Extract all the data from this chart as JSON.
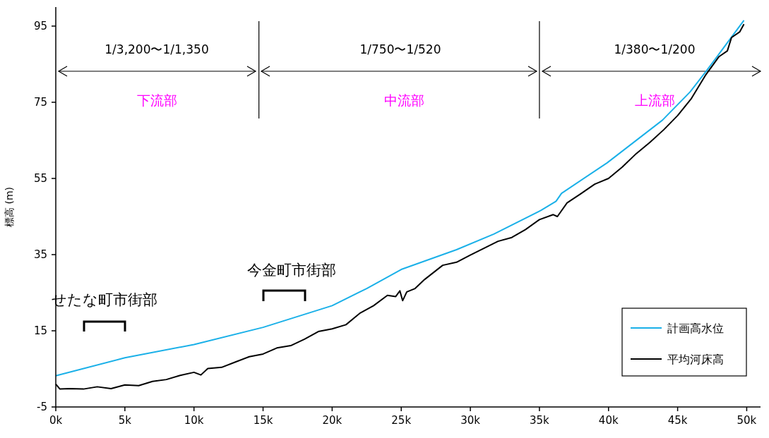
{
  "chart_data": {
    "type": "line",
    "ylabel": "標高 (m)",
    "xlim": [
      0,
      51
    ],
    "xticks": [
      {
        "value": 0,
        "label": "0k"
      },
      {
        "value": 5,
        "label": "5k"
      },
      {
        "value": 10,
        "label": "10k"
      },
      {
        "value": 15,
        "label": "15k"
      },
      {
        "value": 20,
        "label": "20k"
      },
      {
        "value": 25,
        "label": "25k"
      },
      {
        "value": 30,
        "label": "30k"
      },
      {
        "value": 35,
        "label": "35k"
      },
      {
        "value": 40,
        "label": "40k"
      },
      {
        "value": 45,
        "label": "45k"
      },
      {
        "value": 50,
        "label": "50k"
      }
    ],
    "ylim": [
      -5,
      100
    ],
    "yticks": [
      -5,
      15,
      35,
      55,
      75,
      95
    ],
    "grid": false,
    "legend": "bottom right",
    "series": [
      {
        "name": "計画高水位",
        "color": "#1ab0e8",
        "x": [
          0,
          5,
          10,
          15,
          20,
          22.5,
          25,
          29,
          31.7,
          35.1,
          36.2,
          36.6,
          39.9,
          43.9,
          45.9,
          47.1,
          49.8
        ],
        "values": [
          3.2,
          7.9,
          11.4,
          15.9,
          21.6,
          26.1,
          31.1,
          36.3,
          40.4,
          46.6,
          49,
          51.1,
          59.1,
          70.3,
          77.7,
          83.3,
          96.5
        ]
      },
      {
        "name": "平均河床高",
        "color": "#000000",
        "x": [
          0,
          0.3,
          1,
          2,
          3,
          4,
          5,
          6,
          7,
          8,
          9,
          10,
          10.5,
          11,
          12,
          13,
          14,
          15,
          16,
          17,
          18,
          19,
          20,
          21,
          22,
          23,
          24,
          24.6,
          24.9,
          25.1,
          25.4,
          26,
          26.7,
          28,
          29,
          30,
          31,
          32,
          33,
          34,
          35,
          36,
          36.3,
          37,
          38,
          39,
          40,
          41,
          42,
          43,
          44,
          45,
          46,
          47,
          48,
          48.6,
          48.9,
          49.5,
          49.8
        ],
        "values": [
          1,
          -0.3,
          -0.2,
          -0.3,
          0.3,
          -0.2,
          0.8,
          0.6,
          1.7,
          2.2,
          3.3,
          4.1,
          3.4,
          5.1,
          5.4,
          6.8,
          8.2,
          8.9,
          10.5,
          11.1,
          12.8,
          14.8,
          15.5,
          16.6,
          19.6,
          21.6,
          24.3,
          24,
          25.5,
          22.9,
          25.2,
          26.1,
          28.5,
          32.2,
          33,
          34.9,
          36.7,
          38.5,
          39.5,
          41.6,
          44.2,
          45.5,
          45,
          48.6,
          51,
          53.5,
          55,
          58,
          61.5,
          64.5,
          67.8,
          71.5,
          76,
          82,
          87,
          88.5,
          92,
          93.5,
          95.5
        ]
      }
    ],
    "ref_lines": [
      {
        "axis": "x",
        "value": 14.7
      },
      {
        "axis": "x",
        "value": 35
      }
    ],
    "annotations": [
      "1/3,200〜1/1,350",
      "1/750〜1/520",
      "1/380〜1/200",
      "下流部",
      "中流部",
      "上流部",
      "せたな町市街部",
      "今金町市街部"
    ]
  }
}
